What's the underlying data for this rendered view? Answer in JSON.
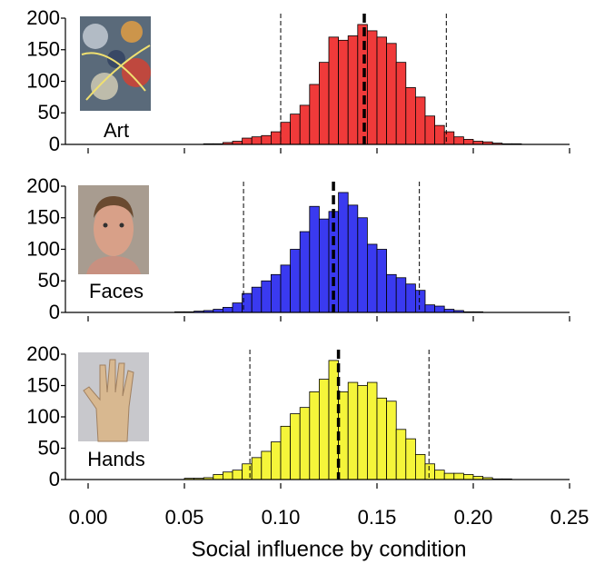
{
  "chart_data": [
    {
      "type": "histogram",
      "label": "Art",
      "color": "#f03a3a",
      "bins": [
        0.06,
        0.065,
        0.07,
        0.075,
        0.08,
        0.085,
        0.09,
        0.095,
        0.1,
        0.105,
        0.11,
        0.115,
        0.12,
        0.125,
        0.13,
        0.135,
        0.14,
        0.145,
        0.15,
        0.155,
        0.16,
        0.165,
        0.17,
        0.175,
        0.18,
        0.185,
        0.19,
        0.195,
        0.2,
        0.205,
        0.21,
        0.215,
        0.22,
        0.225
      ],
      "values": [
        1,
        1,
        3,
        5,
        10,
        12,
        14,
        20,
        35,
        48,
        62,
        95,
        130,
        170,
        165,
        172,
        190,
        180,
        170,
        160,
        130,
        90,
        75,
        45,
        30,
        20,
        12,
        8,
        5,
        4,
        2,
        1,
        1
      ],
      "mean_line": 0.1434,
      "interval_lines": [
        0.1,
        0.186
      ],
      "xlim": [
        0,
        0.25
      ],
      "xticks": [
        0,
        0.05,
        0.1,
        0.15,
        0.2,
        0.25
      ],
      "ylim": [
        0,
        200
      ],
      "yticks": [
        0,
        50,
        100,
        150,
        200
      ]
    },
    {
      "type": "histogram",
      "label": "Faces",
      "color": "#3a3af0",
      "bins": [
        0.045,
        0.05,
        0.055,
        0.06,
        0.065,
        0.07,
        0.075,
        0.08,
        0.085,
        0.09,
        0.095,
        0.1,
        0.105,
        0.11,
        0.115,
        0.12,
        0.125,
        0.13,
        0.135,
        0.14,
        0.145,
        0.15,
        0.155,
        0.16,
        0.165,
        0.17,
        0.175,
        0.18,
        0.185,
        0.19,
        0.195,
        0.2,
        0.205
      ],
      "values": [
        1,
        1,
        2,
        3,
        5,
        8,
        15,
        30,
        40,
        50,
        60,
        75,
        100,
        128,
        168,
        148,
        160,
        190,
        170,
        150,
        108,
        100,
        60,
        55,
        45,
        35,
        12,
        10,
        5,
        3,
        1,
        1
      ],
      "mean_line": 0.1274,
      "interval_lines": [
        0.0807,
        0.172
      ],
      "xlim": [
        0,
        0.25
      ],
      "xticks": [
        0,
        0.05,
        0.1,
        0.15,
        0.2,
        0.25
      ],
      "ylim": [
        0,
        200
      ],
      "yticks": [
        0,
        50,
        100,
        150,
        200
      ]
    },
    {
      "type": "histogram",
      "label": "Hands",
      "color": "#f5f53a",
      "bins": [
        0.05,
        0.055,
        0.06,
        0.065,
        0.07,
        0.075,
        0.08,
        0.085,
        0.09,
        0.095,
        0.1,
        0.105,
        0.11,
        0.115,
        0.12,
        0.125,
        0.13,
        0.135,
        0.14,
        0.145,
        0.15,
        0.155,
        0.16,
        0.165,
        0.17,
        0.175,
        0.18,
        0.185,
        0.19,
        0.195,
        0.2,
        0.205,
        0.21,
        0.215,
        0.22
      ],
      "values": [
        2,
        2,
        3,
        8,
        12,
        15,
        25,
        35,
        45,
        60,
        85,
        105,
        115,
        140,
        160,
        190,
        140,
        155,
        150,
        155,
        130,
        125,
        80,
        65,
        40,
        25,
        15,
        10,
        10,
        8,
        5,
        3,
        1,
        1
      ],
      "mean_line": 0.13,
      "interval_lines": [
        0.084,
        0.177
      ],
      "xlim": [
        0,
        0.25
      ],
      "xticks": [
        {
          "value": 0,
          "label": "0.00"
        },
        {
          "value": 0.05,
          "label": "0.05"
        },
        {
          "value": 0.1,
          "label": "0.10"
        },
        {
          "value": 0.15,
          "label": "0.15"
        },
        {
          "value": 0.2,
          "label": "0.20"
        },
        {
          "value": 0.25,
          "label": "0.25"
        }
      ],
      "xlabel": "Social influence by condition",
      "ylim": [
        0,
        200
      ],
      "yticks": [
        0,
        50,
        100,
        150,
        200
      ]
    }
  ]
}
